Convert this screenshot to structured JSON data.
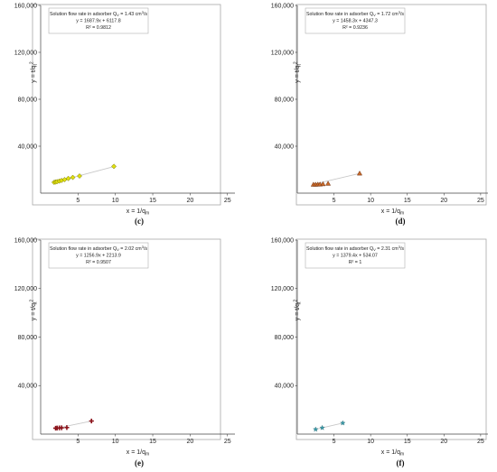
{
  "chart_data": [
    {
      "type": "scatter",
      "panel_label": "(c)",
      "legend": {
        "title_pre": "Solution flow rate in adsorber Q",
        "title_sub": "V",
        "title_value": " = 1.43 cm",
        "title_sup": "3",
        "title_post": "/s",
        "equation": "y = 1687.9x + 6117.8",
        "r2": "R² = 0.9812"
      },
      "xlabel": {
        "main": "x = 1/q",
        "sub": "m"
      },
      "ylabel": {
        "main": "y = t/q",
        "sub": "t",
        "sup": "2"
      },
      "xlim": [
        0,
        26
      ],
      "ylim": [
        0,
        160000
      ],
      "xticks": [
        "5",
        "10",
        "15",
        "20",
        "25"
      ],
      "xtick_values": [
        5,
        10,
        15,
        20,
        25
      ],
      "yticks": [
        "40,000",
        "80,000",
        "120,000",
        "160,000"
      ],
      "ytick_values": [
        40000,
        80000,
        120000,
        160000
      ],
      "marker": "diamond",
      "marker_color": "#e0e010",
      "marker_stroke": "#707000",
      "series": [
        {
          "x": [
            1.8,
            2.0,
            2.2,
            2.5,
            2.8,
            3.2,
            3.7,
            4.3,
            5.2,
            9.8
          ],
          "y": [
            9200,
            9500,
            9800,
            10300,
            10800,
            11500,
            12500,
            13400,
            14600,
            22800
          ]
        }
      ],
      "fit": {
        "slope": 1687.9,
        "intercept": 6117.8,
        "x_range": [
          1.8,
          9.8
        ]
      }
    },
    {
      "type": "scatter",
      "panel_label": "(d)",
      "legend": {
        "title_pre": "Solution flow rate in adsorber Q",
        "title_sub": "V",
        "title_value": " = 1.72 cm",
        "title_sup": "3",
        "title_post": "/s",
        "equation": "y = 1458.3x + 4347.3",
        "r2": "R² = 0.9236"
      },
      "xlabel": {
        "main": "x = 1/q",
        "sub": "m"
      },
      "ylabel": {
        "main": "y = t/q",
        "sub": "t",
        "sup": "2"
      },
      "xlim": [
        0,
        26
      ],
      "ylim": [
        0,
        160000
      ],
      "xticks": [
        "5",
        "10",
        "15",
        "20",
        "25"
      ],
      "xtick_values": [
        5,
        10,
        15,
        20,
        25
      ],
      "yticks": [
        "40,000",
        "80,000",
        "120,000",
        "160,000"
      ],
      "ytick_values": [
        40000,
        80000,
        120000,
        160000
      ],
      "marker": "triangle",
      "marker_color": "#c86a2a",
      "marker_stroke": "#6e3010",
      "series": [
        {
          "x": [
            2.2,
            2.5,
            2.8,
            3.1,
            3.5,
            4.2,
            8.5
          ],
          "y": [
            7200,
            7200,
            7300,
            7400,
            7600,
            8000,
            16700
          ]
        }
      ],
      "fit": {
        "slope": 1458.3,
        "intercept": 4347.3,
        "x_range": [
          2.2,
          8.5
        ]
      }
    },
    {
      "type": "scatter",
      "panel_label": "(e)",
      "legend": {
        "title_pre": "Solution flow rate in adsorber Q",
        "title_sub": "V",
        "title_value": " = 2.02 cm",
        "title_sup": "3",
        "title_post": "/s",
        "equation": "y = 1256.9x + 2213.9",
        "r2": "R² = 0.9507"
      },
      "xlabel": {
        "main": "x = 1/q",
        "sub": "m"
      },
      "ylabel": {
        "main": "y = t/q",
        "sub": "t",
        "sup": "2"
      },
      "xlim": [
        0,
        26
      ],
      "ylim": [
        0,
        160000
      ],
      "xticks": [
        "5",
        "10",
        "15",
        "20",
        "25"
      ],
      "xtick_values": [
        5,
        10,
        15,
        20,
        25
      ],
      "yticks": [
        "40,000",
        "80,000",
        "120,000",
        "160,000"
      ],
      "ytick_values": [
        40000,
        80000,
        120000,
        160000
      ],
      "marker": "plus",
      "marker_color": "#8a1018",
      "marker_stroke": "#8a1018",
      "series": [
        {
          "x": [
            2.0,
            2.2,
            2.5,
            2.8,
            3.5,
            6.8
          ],
          "y": [
            4900,
            5000,
            5100,
            5200,
            5400,
            10800
          ]
        }
      ],
      "fit": {
        "slope": 1256.9,
        "intercept": 2213.9,
        "x_range": [
          2.0,
          6.8
        ]
      }
    },
    {
      "type": "scatter",
      "panel_label": "(f)",
      "legend": {
        "title_pre": "Solution flow rate in adsorber Q",
        "title_sub": "V",
        "title_value": " = 2.31 cm",
        "title_sup": "3",
        "title_post": "/s",
        "equation": "y = 1379.4x + 534.07",
        "r2": "R² = 1"
      },
      "xlabel": {
        "main": "x = 1/q",
        "sub": "m"
      },
      "ylabel": {
        "main": "y = t/q",
        "sub": "t",
        "sup": "2"
      },
      "xlim": [
        0,
        26
      ],
      "ylim": [
        0,
        160000
      ],
      "xticks": [
        "5",
        "10",
        "15",
        "20",
        "25"
      ],
      "xtick_values": [
        5,
        10,
        15,
        20,
        25
      ],
      "yticks": [
        "40,000",
        "80,000",
        "120,000",
        "160,000"
      ],
      "ytick_values": [
        40000,
        80000,
        120000,
        160000
      ],
      "marker": "star",
      "marker_color": "#3a9aa8",
      "marker_stroke": "#1a5a66",
      "series": [
        {
          "x": [
            2.5,
            3.4,
            6.2
          ],
          "y": [
            3900,
            5200,
            9100
          ]
        }
      ],
      "fit": {
        "slope": 1379.4,
        "intercept": 534.07,
        "x_range": [
          2.5,
          6.2
        ]
      }
    }
  ]
}
